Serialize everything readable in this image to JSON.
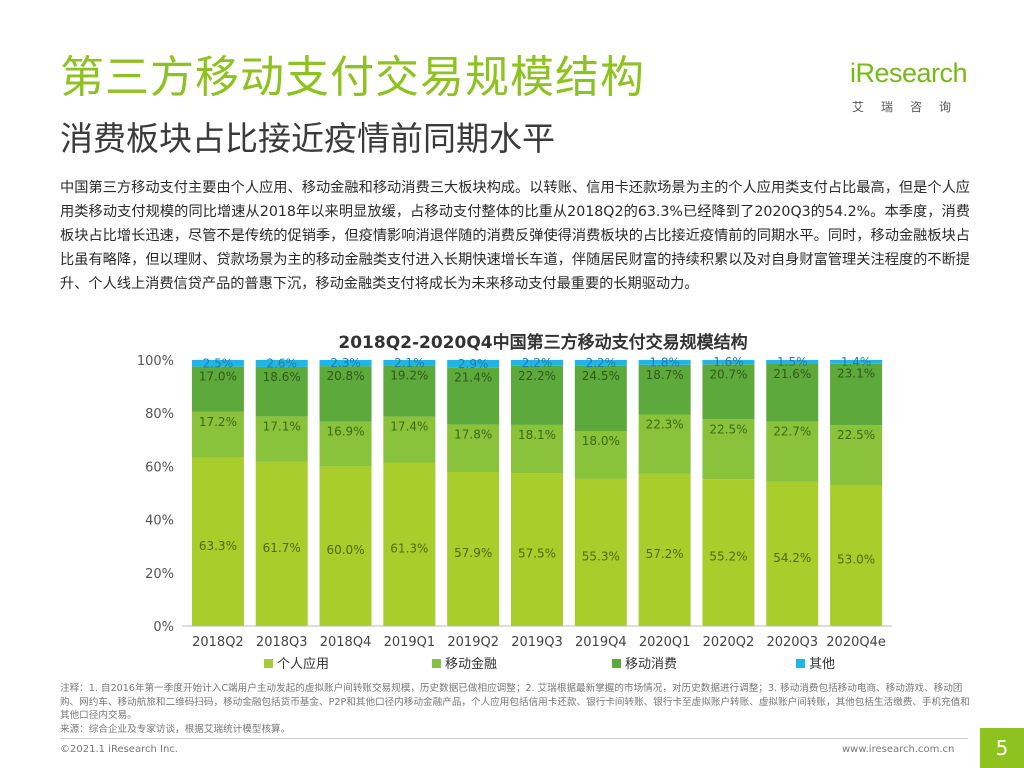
{
  "header": {
    "title": "第三方移动支付交易规模结构",
    "subtitle": "消费板块占比接近疫情前同期水平"
  },
  "logo": {
    "text": "iResearch",
    "sub": "艾瑞咨询"
  },
  "intro": "中国第三方移动支付主要由个人应用、移动金融和移动消费三大板块构成。以转账、信用卡还款场景为主的个人应用类支付占比最高，但是个人应用类移动支付规模的同比增速从2018年以来明显放缓，占移动支付整体的比重从2018Q2的63.3%已经降到了2020Q3的54.2%。本季度，消费板块占比增长迅速，尽管不是传统的促销季，但疫情影响消退伴随的消费反弹使得消费板块的占比接近疫情前的同期水平。同时，移动金融板块占比虽有略降，但以理财、贷款场景为主的移动金融类支付进入长期快速增长车道，伴随居民财富的持续积累以及对自身财富管理关注程度的不断提升、个人线上消费信贷产品的普惠下沉，移动金融类支付将成长为未来移动支付最重要的长期驱动力。",
  "chart_data": {
    "type": "bar",
    "stacked": true,
    "title": "2018Q2-2020Q4中国第三方移动支付交易规模结构",
    "categories": [
      "2018Q2",
      "2018Q3",
      "2018Q4",
      "2019Q1",
      "2019Q2",
      "2019Q3",
      "2019Q4",
      "2020Q1",
      "2020Q2",
      "2020Q3",
      "2020Q4e"
    ],
    "series": [
      {
        "name": "个人应用",
        "color": "#a9ce2c",
        "values": [
          63.3,
          61.7,
          60.0,
          61.3,
          57.9,
          57.5,
          55.3,
          57.2,
          55.2,
          54.2,
          53.0
        ],
        "labels": [
          "63.3%",
          "61.7%",
          "60.0%",
          "61.3%",
          "57.9%",
          "57.5%",
          "55.3%",
          "57.2%",
          "55.2%",
          "54.2%",
          "53.0%"
        ]
      },
      {
        "name": "移动金融",
        "color": "#89c23b",
        "values": [
          17.2,
          17.1,
          16.9,
          17.4,
          17.8,
          18.1,
          18.0,
          22.3,
          22.5,
          22.7,
          22.5
        ],
        "labels": [
          "17.2%",
          "17.1%",
          "16.9%",
          "17.4%",
          "17.8%",
          "18.1%",
          "18.0%",
          "22.3%",
          "22.5%",
          "22.7%",
          "22.5%"
        ]
      },
      {
        "name": "移动消费",
        "color": "#5da93b",
        "values": [
          17.0,
          18.6,
          20.8,
          19.2,
          21.4,
          22.2,
          24.5,
          18.7,
          20.7,
          21.6,
          23.1
        ],
        "labels": [
          "17.0%",
          "18.6%",
          "20.8%",
          "19.2%",
          "21.4%",
          "22.2%",
          "24.5%",
          "18.7%",
          "20.7%",
          "21.6%",
          "23.1%"
        ]
      },
      {
        "name": "其他",
        "color": "#1fb5e8",
        "values": [
          2.5,
          2.6,
          2.3,
          2.1,
          2.9,
          2.2,
          2.2,
          1.8,
          1.6,
          1.5,
          1.4
        ],
        "labels": [
          "2.5%",
          "2.6%",
          "2.3%",
          "2.1%",
          "2.9%",
          "2.2%",
          "2.2%",
          "1.8%",
          "1.6%",
          "1.5%",
          "1.4%"
        ]
      }
    ],
    "ylim": [
      0,
      100
    ],
    "yticks": [
      "0%",
      "20%",
      "40%",
      "60%",
      "80%",
      "100%"
    ],
    "legend_position": "bottom"
  },
  "footer": {
    "note": "注释：1. 自2016年第一季度开始计入C端用户主动发起的虚拟账户间转账交易规模，历史数据已做相应调整；2. 艾瑞根据最新掌握的市场情况，对历史数据进行调整；3. 移动消费包括移动电商、移动游戏、移动团购、网约车、移动航旅和二维码扫码，移动金融包括货币基金、P2P和其他口径内移动金融产品，个人应用包括信用卡还款、银行卡间转账、银行卡至虚拟账户转账、虚拟账户间转账，其他包括生活缴费、手机充值和其他口径内交易。",
    "source": "来源：综合企业及专家访谈，根据艾瑞统计模型核算。",
    "copyright": "©2021.1 iResearch Inc.",
    "website": "www.iresearch.com.cn",
    "page": "5"
  }
}
